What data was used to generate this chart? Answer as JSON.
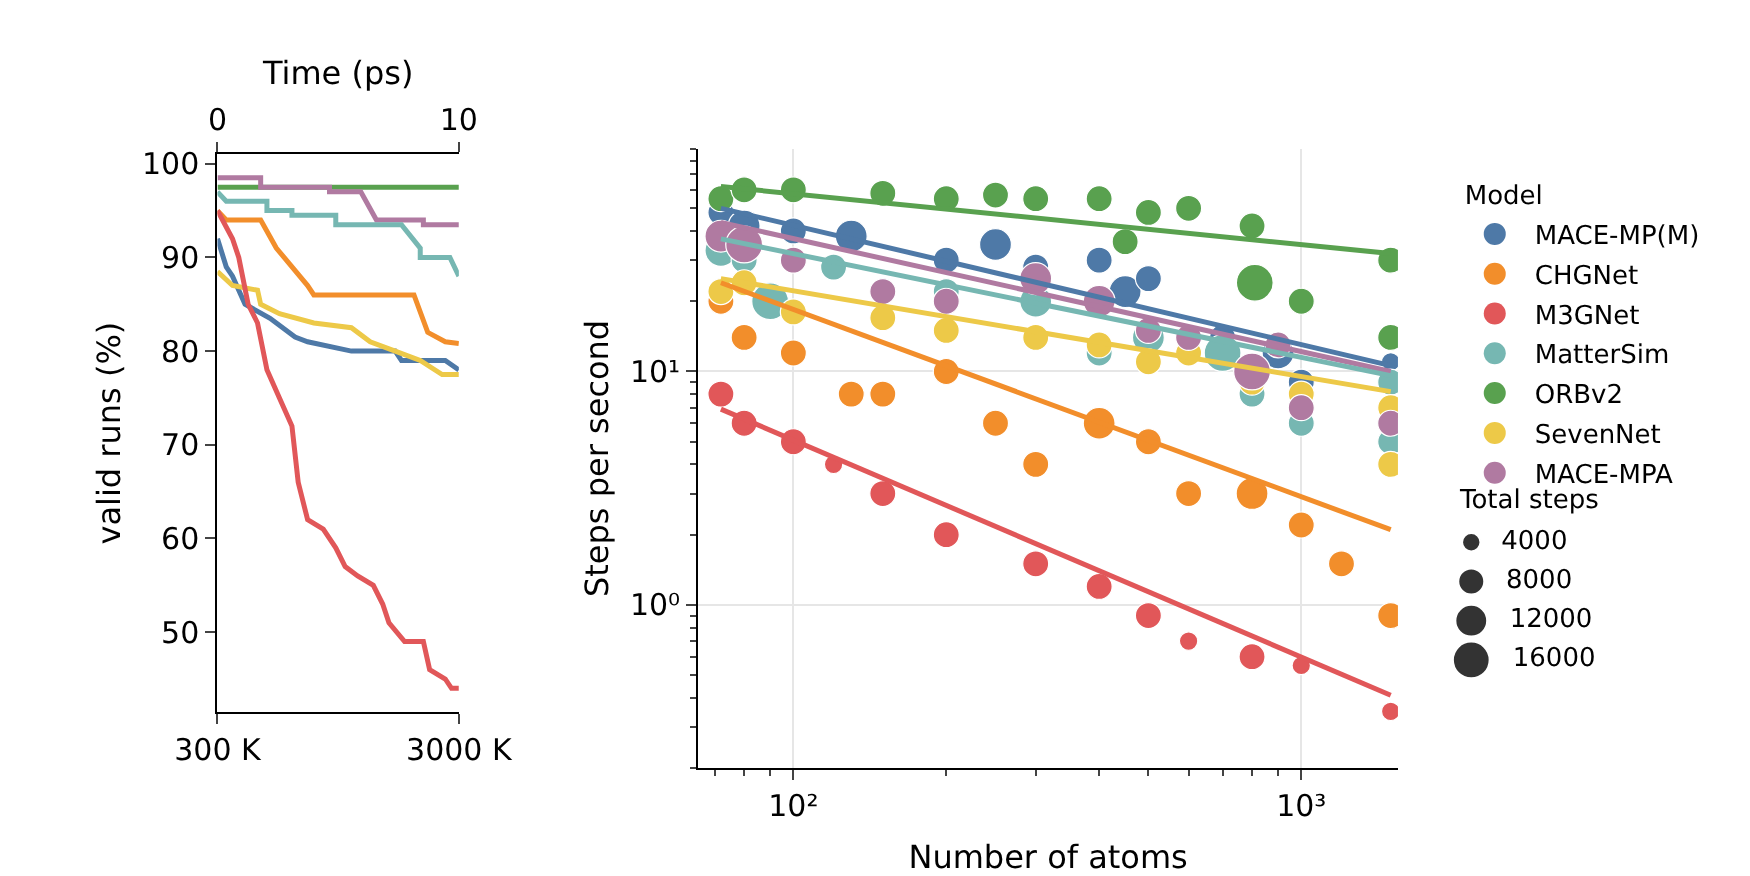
{
  "chart_data": [
    {
      "type": "line",
      "ylabel": "valid runs (%)",
      "x2label": "Time (ps)",
      "xlim": [
        300,
        3000
      ],
      "xticks": [
        {
          "value": 300,
          "label": "300 K"
        },
        {
          "value": 3000,
          "label": "3000 K"
        }
      ],
      "x2lim": [
        0,
        10
      ],
      "x2ticks": [
        0,
        10
      ],
      "ylim": [
        41.5,
        101
      ],
      "yticks": [
        50,
        60,
        70,
        80,
        90,
        100
      ],
      "grid": false,
      "legend": false,
      "series": [
        {
          "color": "#59a14f",
          "x": [
            300,
            3000
          ],
          "values": [
            97.5,
            97.5
          ]
        },
        {
          "color": "#b07aa1",
          "x": [
            300,
            783,
            783,
            1553,
            1553,
            1903,
            2078,
            2603,
            2603,
            3000
          ],
          "values": [
            98.5,
            98.5,
            97.5,
            97.5,
            97,
            97,
            94,
            94,
            93.5,
            93.5
          ]
        },
        {
          "color": "#76b7b2",
          "x": [
            300,
            398,
            853,
            853,
            1133,
            1133,
            1623,
            1623,
            2358,
            2568,
            2568,
            2900,
            3000
          ],
          "values": [
            97,
            96,
            96,
            95,
            95,
            94.5,
            94.5,
            93.5,
            93.5,
            91,
            90,
            90,
            88
          ]
        },
        {
          "color": "#f28e2b",
          "x": [
            300,
            398,
            783,
            958,
            1308,
            1378,
            2498,
            2652,
            2848,
            3000
          ],
          "values": [
            95,
            94,
            94,
            91,
            87,
            86,
            86,
            82,
            81,
            80.8
          ]
        },
        {
          "color": "#4e79a7",
          "x": [
            300,
            398,
            468,
            608,
            888,
            1168,
            1308,
            1798,
            2288,
            2358,
            2848,
            3000
          ],
          "values": [
            92,
            89,
            88,
            85,
            83.5,
            81.5,
            81,
            80,
            80,
            79,
            79,
            78
          ]
        },
        {
          "color": "#edc948",
          "x": [
            300,
            468,
            748,
            783,
            993,
            1378,
            1798,
            2008,
            2288,
            2568,
            2813,
            3000
          ],
          "values": [
            88.5,
            87,
            86.5,
            85,
            84,
            83,
            82.5,
            81,
            80,
            79,
            77.5,
            77.5
          ]
        },
        {
          "color": "#e15759",
          "x": [
            300,
            468,
            538,
            643,
            748,
            853,
            993,
            1133,
            1203,
            1308,
            1483,
            1623,
            1728,
            1868,
            2043,
            2148,
            2218,
            2393,
            2603,
            2673,
            2848,
            2918,
            3000
          ],
          "values": [
            95,
            92,
            90,
            85,
            83,
            78,
            75,
            72,
            66,
            62,
            61,
            59,
            57,
            56,
            55,
            53,
            51,
            49,
            49,
            46,
            45,
            44,
            44
          ]
        }
      ]
    },
    {
      "type": "bubble",
      "xlabel": "Number of atoms",
      "ylabel": "Steps per second",
      "log": "xy",
      "grid": true,
      "legend": "right",
      "legend_title": "Model",
      "annotations": [
        "Total steps"
      ],
      "size_legend": [
        4000,
        8000,
        12000,
        16000
      ],
      "xlim": [
        65,
        1550
      ],
      "xticks": [
        {
          "value": 100,
          "label": "10²"
        },
        {
          "value": 1000,
          "label": "10³"
        }
      ],
      "ylim": [
        0.2,
        90
      ],
      "yticks": [
        {
          "value": 1,
          "label": "10⁰"
        },
        {
          "value": 10,
          "label": "10¹"
        }
      ],
      "series": [
        {
          "name": "MACE-MP(M)",
          "color": "#4e79a7",
          "marker": "circle",
          "x": [
            72,
            80,
            100,
            130,
            200,
            250,
            300,
            400,
            450,
            500,
            700,
            900,
            1000,
            1500
          ],
          "values": [
            48,
            42,
            40,
            38,
            30,
            35,
            28,
            30,
            22,
            25,
            14,
            12,
            9,
            11
          ],
          "sizes": [
            8000,
            12000,
            8000,
            12000,
            8000,
            12000,
            8000,
            8000,
            12000,
            8000,
            8000,
            12000,
            8000,
            4000
          ]
        },
        {
          "name": "CHGNet",
          "color": "#f28e2b",
          "marker": "circle",
          "x": [
            72,
            80,
            100,
            130,
            150,
            200,
            250,
            300,
            400,
            500,
            600,
            800,
            1000,
            1200,
            1500
          ],
          "values": [
            20,
            14,
            12,
            8,
            8,
            10,
            6,
            4,
            6,
            5,
            3,
            3,
            2.2,
            1.5,
            0.9
          ],
          "sizes": [
            8000,
            8000,
            8000,
            8000,
            8000,
            8000,
            8000,
            8000,
            12000,
            8000,
            8000,
            12000,
            8000,
            8000,
            8000
          ]
        },
        {
          "name": "M3GNet",
          "color": "#e15759",
          "marker": "circle",
          "x": [
            72,
            80,
            100,
            120,
            150,
            200,
            300,
            400,
            500,
            600,
            800,
            1000,
            1500
          ],
          "values": [
            8,
            6,
            5,
            4,
            3,
            2,
            1.5,
            1.2,
            0.9,
            0.7,
            0.6,
            0.55,
            0.35
          ],
          "sizes": [
            8000,
            8000,
            8000,
            4000,
            8000,
            8000,
            8000,
            8000,
            8000,
            4000,
            8000,
            4000,
            4000
          ]
        },
        {
          "name": "MatterSim",
          "color": "#76b7b2",
          "marker": "circle",
          "x": [
            72,
            80,
            90,
            120,
            200,
            300,
            400,
            500,
            700,
            800,
            1000,
            1500,
            1500
          ],
          "values": [
            33,
            30,
            20,
            28,
            22,
            20,
            12,
            14,
            12,
            8,
            6,
            9,
            5
          ],
          "sizes": [
            12000,
            8000,
            16000,
            8000,
            8000,
            12000,
            8000,
            12000,
            16000,
            8000,
            8000,
            8000,
            8000
          ]
        },
        {
          "name": "ORBv2",
          "color": "#59a14f",
          "marker": "circle",
          "x": [
            72,
            80,
            100,
            150,
            200,
            250,
            300,
            400,
            450,
            500,
            600,
            800,
            810,
            1000,
            1500,
            1500
          ],
          "values": [
            55,
            60,
            60,
            58,
            55,
            57,
            55,
            55,
            36,
            48,
            50,
            42,
            24,
            20,
            30,
            14
          ],
          "sizes": [
            8000,
            8000,
            8000,
            8000,
            8000,
            8000,
            8000,
            8000,
            8000,
            8000,
            8000,
            8000,
            16000,
            8000,
            8000,
            8000
          ]
        },
        {
          "name": "SevenNet",
          "color": "#edc948",
          "marker": "circle",
          "x": [
            72,
            80,
            100,
            150,
            200,
            300,
            400,
            500,
            600,
            800,
            1000,
            1500,
            1500
          ],
          "values": [
            22,
            24,
            18,
            17,
            15,
            14,
            13,
            11,
            12,
            9,
            8,
            7,
            4
          ],
          "sizes": [
            8000,
            8000,
            8000,
            8000,
            8000,
            8000,
            8000,
            8000,
            8000,
            8000,
            8000,
            8000,
            8000
          ]
        },
        {
          "name": "MACE-MPA",
          "color": "#b07aa1",
          "marker": "circle",
          "x": [
            72,
            80,
            100,
            150,
            200,
            300,
            400,
            500,
            600,
            800,
            900,
            1000,
            1500
          ],
          "values": [
            38,
            35,
            30,
            22,
            20,
            25,
            20,
            15,
            14,
            10,
            13,
            7,
            6
          ],
          "sizes": [
            12000,
            16000,
            8000,
            8000,
            8000,
            12000,
            12000,
            8000,
            8000,
            16000,
            8000,
            8000,
            8000
          ]
        },
        {
          "type": "line",
          "color": "#59a14f",
          "x": [
            72,
            1500
          ],
          "values": [
            62,
            32
          ]
        },
        {
          "type": "line",
          "color": "#4e79a7",
          "x": [
            72,
            1500
          ],
          "values": [
            50,
            10.6
          ]
        },
        {
          "type": "line",
          "color": "#b07aa1",
          "x": [
            72,
            1500
          ],
          "values": [
            43.5,
            10
          ]
        },
        {
          "type": "line",
          "color": "#76b7b2",
          "x": [
            72,
            1500
          ],
          "values": [
            37,
            9.6
          ]
        },
        {
          "type": "line",
          "color": "#edc948",
          "x": [
            72,
            1500
          ],
          "values": [
            25,
            8.2
          ]
        },
        {
          "type": "line",
          "color": "#f28e2b",
          "x": [
            72,
            1500
          ],
          "values": [
            24,
            2.1
          ]
        },
        {
          "type": "line",
          "color": "#e15759",
          "x": [
            72,
            1500
          ],
          "values": [
            6.9,
            0.41
          ]
        }
      ]
    }
  ]
}
